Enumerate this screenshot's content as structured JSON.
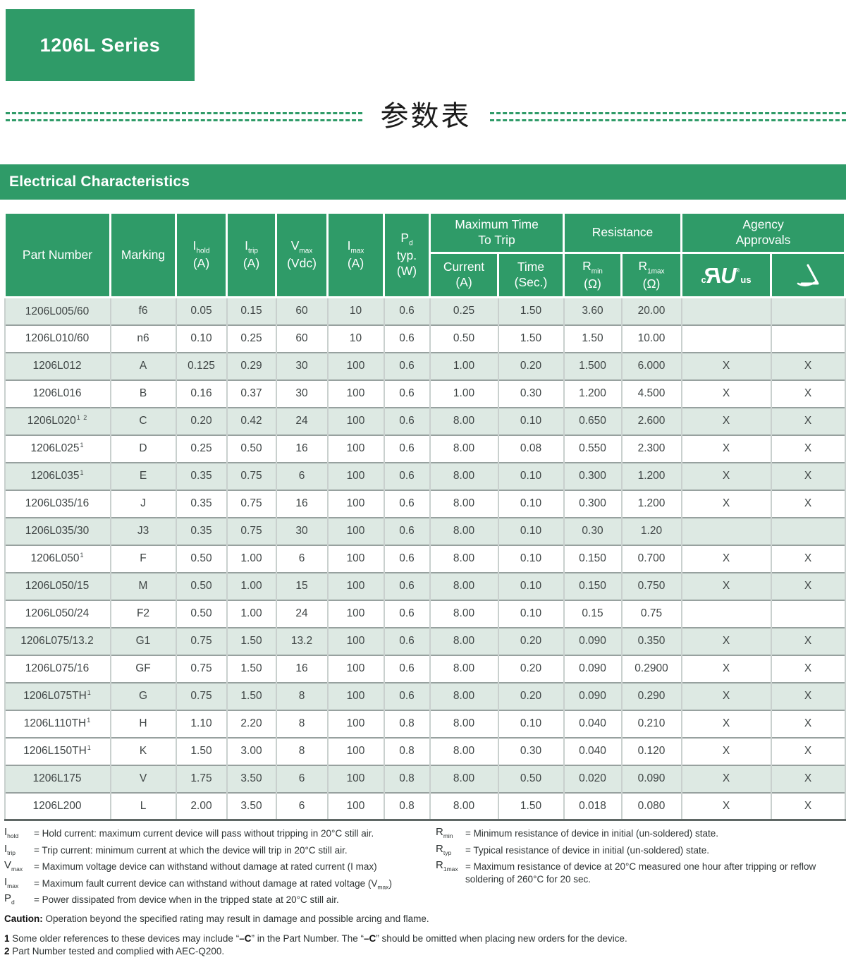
{
  "colors": {
    "green": "#2f9b68",
    "shade": "#dde9e3"
  },
  "page": {
    "series_badge": "1206L Series",
    "cn_title": "参数表",
    "section_title": "Electrical Characteristics"
  },
  "table": {
    "columns": {
      "part": "Part Number",
      "marking": "Marking",
      "ihold": {
        "sym": "I",
        "sub": "hold",
        "unit": "(A)"
      },
      "itrip": {
        "sym": "I",
        "sub": "trip",
        "unit": "(A)"
      },
      "vmax": {
        "sym": "V",
        "sub": "max",
        "unit": "(Vdc)"
      },
      "imax": {
        "sym": "I",
        "sub": "max",
        "unit": "(A)"
      },
      "pd": {
        "sym": "P",
        "sub": "d",
        "line2": "typ.",
        "line3": "(W)"
      },
      "trip_group": "Maximum Time\nTo Trip",
      "trip_current": "Current\n(A)",
      "trip_time": "Time\n(Sec.)",
      "resistance_group": "Resistance",
      "rmin": {
        "sym": "R",
        "sub": "min",
        "unit": "(Ω)"
      },
      "r1max": {
        "sym": "R",
        "sub": "1max",
        "unit": "(Ω)"
      },
      "agency_group": "Agency\nApprovals",
      "ul_mark": {
        "c": "c",
        "letters": "RU",
        "reg": "®",
        "us": "us"
      }
    },
    "rows": [
      {
        "part": "1206L005/60",
        "sup": "",
        "marking": "f6",
        "ihold": "0.05",
        "itrip": "0.15",
        "vmax": "60",
        "imax": "10",
        "pd": "0.6",
        "cur": "0.25",
        "time": "1.50",
        "rmin": "3.60",
        "r1max": "20.00",
        "ul": "",
        "tuv": "",
        "shaded": true
      },
      {
        "part": "1206L010/60",
        "sup": "",
        "marking": "n6",
        "ihold": "0.10",
        "itrip": "0.25",
        "vmax": "60",
        "imax": "10",
        "pd": "0.6",
        "cur": "0.50",
        "time": "1.50",
        "rmin": "1.50",
        "r1max": "10.00",
        "ul": "",
        "tuv": "",
        "shaded": false
      },
      {
        "part": "1206L012",
        "sup": "",
        "marking": "A",
        "ihold": "0.125",
        "itrip": "0.29",
        "vmax": "30",
        "imax": "100",
        "pd": "0.6",
        "cur": "1.00",
        "time": "0.20",
        "rmin": "1.500",
        "r1max": "6.000",
        "ul": "X",
        "tuv": "X",
        "shaded": true
      },
      {
        "part": "1206L016",
        "sup": "",
        "marking": "B",
        "ihold": "0.16",
        "itrip": "0.37",
        "vmax": "30",
        "imax": "100",
        "pd": "0.6",
        "cur": "1.00",
        "time": "0.30",
        "rmin": "1.200",
        "r1max": "4.500",
        "ul": "X",
        "tuv": "X",
        "shaded": false
      },
      {
        "part": "1206L020",
        "sup": "1 2",
        "marking": "C",
        "ihold": "0.20",
        "itrip": "0.42",
        "vmax": "24",
        "imax": "100",
        "pd": "0.6",
        "cur": "8.00",
        "time": "0.10",
        "rmin": "0.650",
        "r1max": "2.600",
        "ul": "X",
        "tuv": "X",
        "shaded": true
      },
      {
        "part": "1206L025",
        "sup": "1",
        "marking": "D",
        "ihold": "0.25",
        "itrip": "0.50",
        "vmax": "16",
        "imax": "100",
        "pd": "0.6",
        "cur": "8.00",
        "time": "0.08",
        "rmin": "0.550",
        "r1max": "2.300",
        "ul": "X",
        "tuv": "X",
        "shaded": false
      },
      {
        "part": "1206L035",
        "sup": "1",
        "marking": "E",
        "ihold": "0.35",
        "itrip": "0.75",
        "vmax": "6",
        "imax": "100",
        "pd": "0.6",
        "cur": "8.00",
        "time": "0.10",
        "rmin": "0.300",
        "r1max": "1.200",
        "ul": "X",
        "tuv": "X",
        "shaded": true
      },
      {
        "part": "1206L035/16",
        "sup": "",
        "marking": "J",
        "ihold": "0.35",
        "itrip": "0.75",
        "vmax": "16",
        "imax": "100",
        "pd": "0.6",
        "cur": "8.00",
        "time": "0.10",
        "rmin": "0.300",
        "r1max": "1.200",
        "ul": "X",
        "tuv": "X",
        "shaded": false
      },
      {
        "part": "1206L035/30",
        "sup": "",
        "marking": "J3",
        "ihold": "0.35",
        "itrip": "0.75",
        "vmax": "30",
        "imax": "100",
        "pd": "0.6",
        "cur": "8.00",
        "time": "0.10",
        "rmin": "0.30",
        "r1max": "1.20",
        "ul": "",
        "tuv": "",
        "shaded": true
      },
      {
        "part": "1206L050",
        "sup": "1",
        "marking": "F",
        "ihold": "0.50",
        "itrip": "1.00",
        "vmax": "6",
        "imax": "100",
        "pd": "0.6",
        "cur": "8.00",
        "time": "0.10",
        "rmin": "0.150",
        "r1max": "0.700",
        "ul": "X",
        "tuv": "X",
        "shaded": false
      },
      {
        "part": "1206L050/15",
        "sup": "",
        "marking": "M",
        "ihold": "0.50",
        "itrip": "1.00",
        "vmax": "15",
        "imax": "100",
        "pd": "0.6",
        "cur": "8.00",
        "time": "0.10",
        "rmin": "0.150",
        "r1max": "0.750",
        "ul": "X",
        "tuv": "X",
        "shaded": true
      },
      {
        "part": "1206L050/24",
        "sup": "",
        "marking": "F2",
        "ihold": "0.50",
        "itrip": "1.00",
        "vmax": "24",
        "imax": "100",
        "pd": "0.6",
        "cur": "8.00",
        "time": "0.10",
        "rmin": "0.15",
        "r1max": "0.75",
        "ul": "",
        "tuv": "",
        "shaded": false
      },
      {
        "part": "1206L075/13.2",
        "sup": "",
        "marking": "G1",
        "ihold": "0.75",
        "itrip": "1.50",
        "vmax": "13.2",
        "imax": "100",
        "pd": "0.6",
        "cur": "8.00",
        "time": "0.20",
        "rmin": "0.090",
        "r1max": "0.350",
        "ul": "X",
        "tuv": "X",
        "shaded": true
      },
      {
        "part": "1206L075/16",
        "sup": "",
        "marking": "GF",
        "ihold": "0.75",
        "itrip": "1.50",
        "vmax": "16",
        "imax": "100",
        "pd": "0.6",
        "cur": "8.00",
        "time": "0.20",
        "rmin": "0.090",
        "r1max": "0.2900",
        "ul": "X",
        "tuv": "X",
        "shaded": false
      },
      {
        "part": "1206L075TH",
        "sup": "1",
        "marking": "G",
        "ihold": "0.75",
        "itrip": "1.50",
        "vmax": "8",
        "imax": "100",
        "pd": "0.6",
        "cur": "8.00",
        "time": "0.20",
        "rmin": "0.090",
        "r1max": "0.290",
        "ul": "X",
        "tuv": "X",
        "shaded": true
      },
      {
        "part": "1206L110TH",
        "sup": "1",
        "marking": "H",
        "ihold": "1.10",
        "itrip": "2.20",
        "vmax": "8",
        "imax": "100",
        "pd": "0.8",
        "cur": "8.00",
        "time": "0.10",
        "rmin": "0.040",
        "r1max": "0.210",
        "ul": "X",
        "tuv": "X",
        "shaded": false
      },
      {
        "part": "1206L150TH",
        "sup": "1",
        "marking": "K",
        "ihold": "1.50",
        "itrip": "3.00",
        "vmax": "8",
        "imax": "100",
        "pd": "0.8",
        "cur": "8.00",
        "time": "0.30",
        "rmin": "0.040",
        "r1max": "0.120",
        "ul": "X",
        "tuv": "X",
        "shaded": false
      },
      {
        "part": "1206L175",
        "sup": "",
        "marking": "V",
        "ihold": "1.75",
        "itrip": "3.50",
        "vmax": "6",
        "imax": "100",
        "pd": "0.8",
        "cur": "8.00",
        "time": "0.50",
        "rmin": "0.020",
        "r1max": "0.090",
        "ul": "X",
        "tuv": "X",
        "shaded": true
      },
      {
        "part": "1206L200",
        "sup": "",
        "marking": "L",
        "ihold": "2.00",
        "itrip": "3.50",
        "vmax": "6",
        "imax": "100",
        "pd": "0.8",
        "cur": "8.00",
        "time": "1.50",
        "rmin": "0.018",
        "r1max": "0.080",
        "ul": "X",
        "tuv": "X",
        "shaded": false
      }
    ]
  },
  "footnotes": {
    "left": [
      {
        "sym": "I",
        "sub": "hold",
        "text": "= Hold current: maximum current device will pass without tripping in 20°C still air."
      },
      {
        "sym": "I",
        "sub": "trip",
        "text": "= Trip current: minimum current at which the device will trip in 20°C still air."
      },
      {
        "sym": "V",
        "sub": "max",
        "text": "= Maximum voltage device can withstand without damage at rated current (I max)"
      },
      {
        "sym": "I",
        "sub": "max",
        "text": "= Maximum fault current device can withstand without damage at rated voltage (V_max_)"
      },
      {
        "sym": "P",
        "sub": "d",
        "text": "= Power dissipated from device when in the tripped state at 20°C still air."
      }
    ],
    "right": [
      {
        "sym": "R",
        "sub": "min",
        "text": "= Minimum resistance of device in initial (un-soldered) state."
      },
      {
        "sym": "R",
        "sub": "typ",
        "text": "= Typical resistance of device in initial (un-soldered) state."
      },
      {
        "sym": "R",
        "sub": "1max",
        "text": "= Maximum resistance of device at 20°C measured one hour after tripping or reflow soldering of 260°C for 20 sec."
      }
    ],
    "caution_label": "Caution:",
    "caution_text": "Operation beyond the specified rating may result in damage and possible arcing and flame.",
    "notes": [
      {
        "num": "1",
        "text": "Some older references to these devices may include “*–C*” in the Part Number. The “*–C*” should be omitted when placing new orders for the device."
      },
      {
        "num": "2",
        "text": "Part Number tested and complied with AEC-Q200."
      }
    ]
  }
}
